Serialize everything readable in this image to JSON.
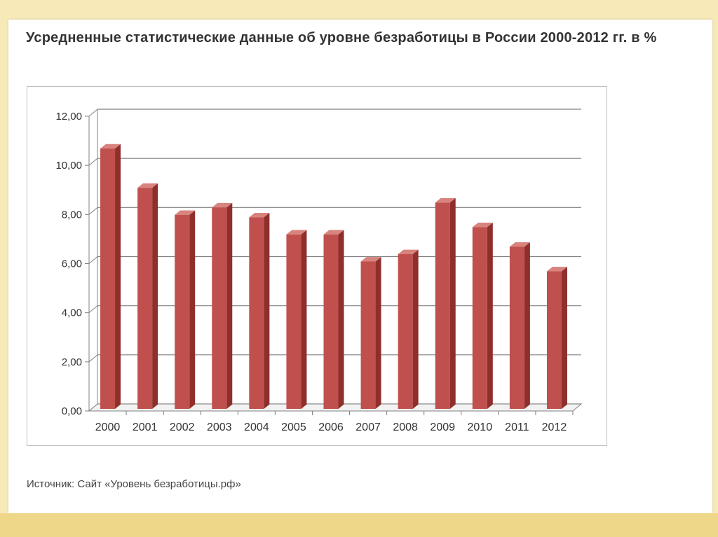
{
  "title": "Усредненные статистические данные об уровне безработицы в России 2000-2012 гг. в %",
  "source": "Источник: Сайт «Уровень безработицы.рф»",
  "colors": {
    "bar_front": "#c0504d",
    "bar_side": "#8e2f2c",
    "bar_top": "#d9837f",
    "grid": "#808080"
  },
  "chart_data": {
    "type": "bar",
    "categories": [
      "2000",
      "2001",
      "2002",
      "2003",
      "2004",
      "2005",
      "2006",
      "2007",
      "2008",
      "2009",
      "2010",
      "2011",
      "2012"
    ],
    "values": [
      10.6,
      9.0,
      7.9,
      8.2,
      7.8,
      7.1,
      7.1,
      6.0,
      6.3,
      8.4,
      7.4,
      6.6,
      5.6
    ],
    "yticks": [
      "0,00",
      "2,00",
      "4,00",
      "6,00",
      "8,00",
      "10,00",
      "12,00"
    ],
    "ylim": [
      0,
      12
    ],
    "grid": true,
    "three_d": true
  }
}
